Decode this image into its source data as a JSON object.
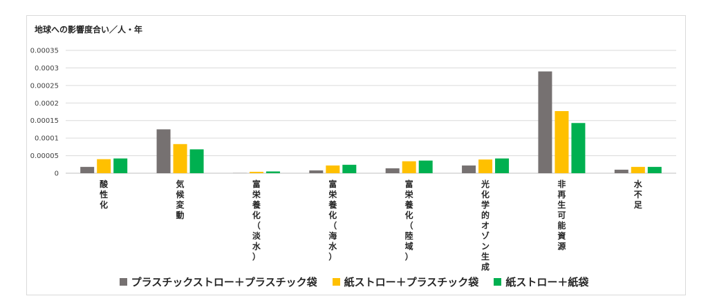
{
  "chart_data": {
    "type": "bar",
    "title": "地球への影響度合い／人・年",
    "xlabel": "",
    "ylabel": "",
    "ylim": [
      0,
      0.00035
    ],
    "yticks": [
      "0",
      "0.00005",
      "0.0001",
      "0.00015",
      "0.0002",
      "0.00025",
      "0.0003",
      "0.00035"
    ],
    "ytick_values": [
      0,
      5e-05,
      0.0001,
      0.00015,
      0.0002,
      0.00025,
      0.0003,
      0.00035
    ],
    "grid": true,
    "legend_position": "bottom",
    "categories": [
      "酸性化",
      "気候変動",
      "富栄養化（淡水）",
      "富栄養化（海水）",
      "富栄養化（陸域）",
      "光化学的オゾン生成",
      "非再生可能資源",
      "水不足"
    ],
    "series": [
      {
        "name": "プラスチックストロー＋プラスチック袋",
        "color": "#767171",
        "values": [
          1.8e-05,
          0.000125,
          5e-07,
          8e-06,
          1.4e-05,
          2.2e-05,
          0.00029,
          1e-05
        ]
      },
      {
        "name": "紙ストロー＋プラスチック袋",
        "color": "#ffc000",
        "values": [
          4e-05,
          8.3e-05,
          4e-06,
          2.2e-05,
          3.4e-05,
          3.9e-05,
          0.000177,
          1.8e-05
        ]
      },
      {
        "name": "紙ストロー＋紙袋",
        "color": "#00b050",
        "values": [
          4.2e-05,
          6.8e-05,
          5e-06,
          2.4e-05,
          3.6e-05,
          4.2e-05,
          0.000143,
          1.8e-05
        ]
      }
    ]
  }
}
